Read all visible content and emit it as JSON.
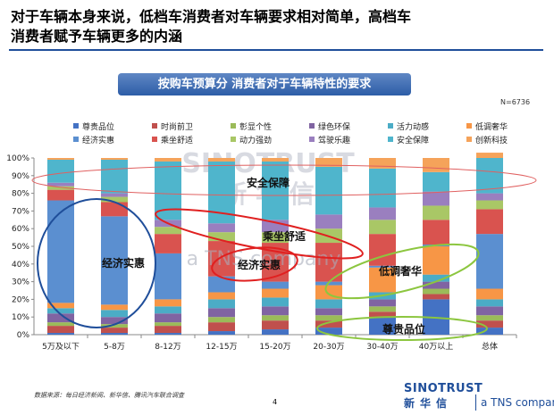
{
  "slide": {
    "title_line1": "对于车辆本身来说，低档车消费者对车辆要求相对简单，高档车",
    "title_line2": "消费者赋予车辆更多的内涵",
    "banner": "按购车预算分  消费者对于车辆特性的要求",
    "sample_size": "N=6736",
    "source": "数据来源：每日经济新闻、新华信、腾讯汽车联合调查",
    "page_number": "4",
    "brand_en": "SINOTRUST",
    "brand_cn": "新华信",
    "brand_tagline": "a TNS company",
    "watermark_en": "SINOTRUST",
    "watermark_cn": "新 华 信",
    "watermark_tagline": "a TNS company"
  },
  "annotations": {
    "safety": "安全保障",
    "comfort": "乘坐舒适",
    "economy_large": "经济实惠",
    "economy_small": "经济实惠",
    "luxury": "低调奢华",
    "prestige": "尊贵品位"
  },
  "chart_data": {
    "type": "bar",
    "stacked": true,
    "categories": [
      "5万及以下",
      "5-8万",
      "8-12万",
      "12-15万",
      "15-20万",
      "20-30万",
      "30-40万",
      "40万以上",
      "总体"
    ],
    "ylim": [
      0,
      100
    ],
    "yticks": [
      "0%",
      "10%",
      "20%",
      "30%",
      "40%",
      "50%",
      "60%",
      "70%",
      "80%",
      "90%",
      "100%"
    ],
    "legend_position": "top",
    "legend_order": [
      "尊贵品位",
      "时尚前卫",
      "彰显个性",
      "绿色环保",
      "活力动感",
      "低调奢华",
      "经济实惠",
      "乘坐舒适",
      "动力强劲",
      "驾驶乐趣",
      "安全保障",
      "创新科技"
    ],
    "series": [
      {
        "name": "尊贵品位",
        "color": "#4472c4",
        "values": [
          1,
          1,
          1,
          2,
          3,
          4,
          10,
          20,
          4
        ]
      },
      {
        "name": "时尚前卫",
        "color": "#c0504d",
        "values": [
          4,
          3,
          4,
          5,
          5,
          4,
          3,
          3,
          4
        ]
      },
      {
        "name": "彰显个性",
        "color": "#9bbb59",
        "values": [
          2,
          2,
          2,
          3,
          3,
          3,
          3,
          3,
          3
        ]
      },
      {
        "name": "绿色环保",
        "color": "#8064a2",
        "values": [
          5,
          4,
          5,
          5,
          5,
          4,
          4,
          4,
          5
        ]
      },
      {
        "name": "活力动感",
        "color": "#4bacc6",
        "values": [
          3,
          4,
          4,
          5,
          5,
          5,
          4,
          4,
          4
        ]
      },
      {
        "name": "低调奢华",
        "color": "#f79646",
        "values": [
          3,
          3,
          4,
          4,
          5,
          8,
          14,
          16,
          6
        ]
      },
      {
        "name": "经济实惠",
        "color": "#5b8fd0",
        "values": [
          58,
          50,
          26,
          9,
          4,
          2,
          1,
          1,
          31
        ]
      },
      {
        "name": "乘坐舒适",
        "color": "#d9534f",
        "values": [
          6,
          8,
          11,
          20,
          22,
          22,
          18,
          14,
          14
        ]
      },
      {
        "name": "动力强劲",
        "color": "#a9c766",
        "values": [
          2,
          3,
          4,
          5,
          6,
          8,
          8,
          8,
          5
        ]
      },
      {
        "name": "驾驶乐趣",
        "color": "#9a7fbf",
        "values": [
          2,
          2,
          4,
          5,
          7,
          8,
          7,
          8,
          4
        ]
      },
      {
        "name": "安全保障",
        "color": "#4fb5cc",
        "values": [
          13,
          19,
          33,
          35,
          33,
          27,
          22,
          11,
          20
        ]
      },
      {
        "name": "创新科技",
        "color": "#f5a35a",
        "values": [
          1,
          1,
          2,
          2,
          2,
          5,
          6,
          8,
          3
        ]
      }
    ]
  }
}
